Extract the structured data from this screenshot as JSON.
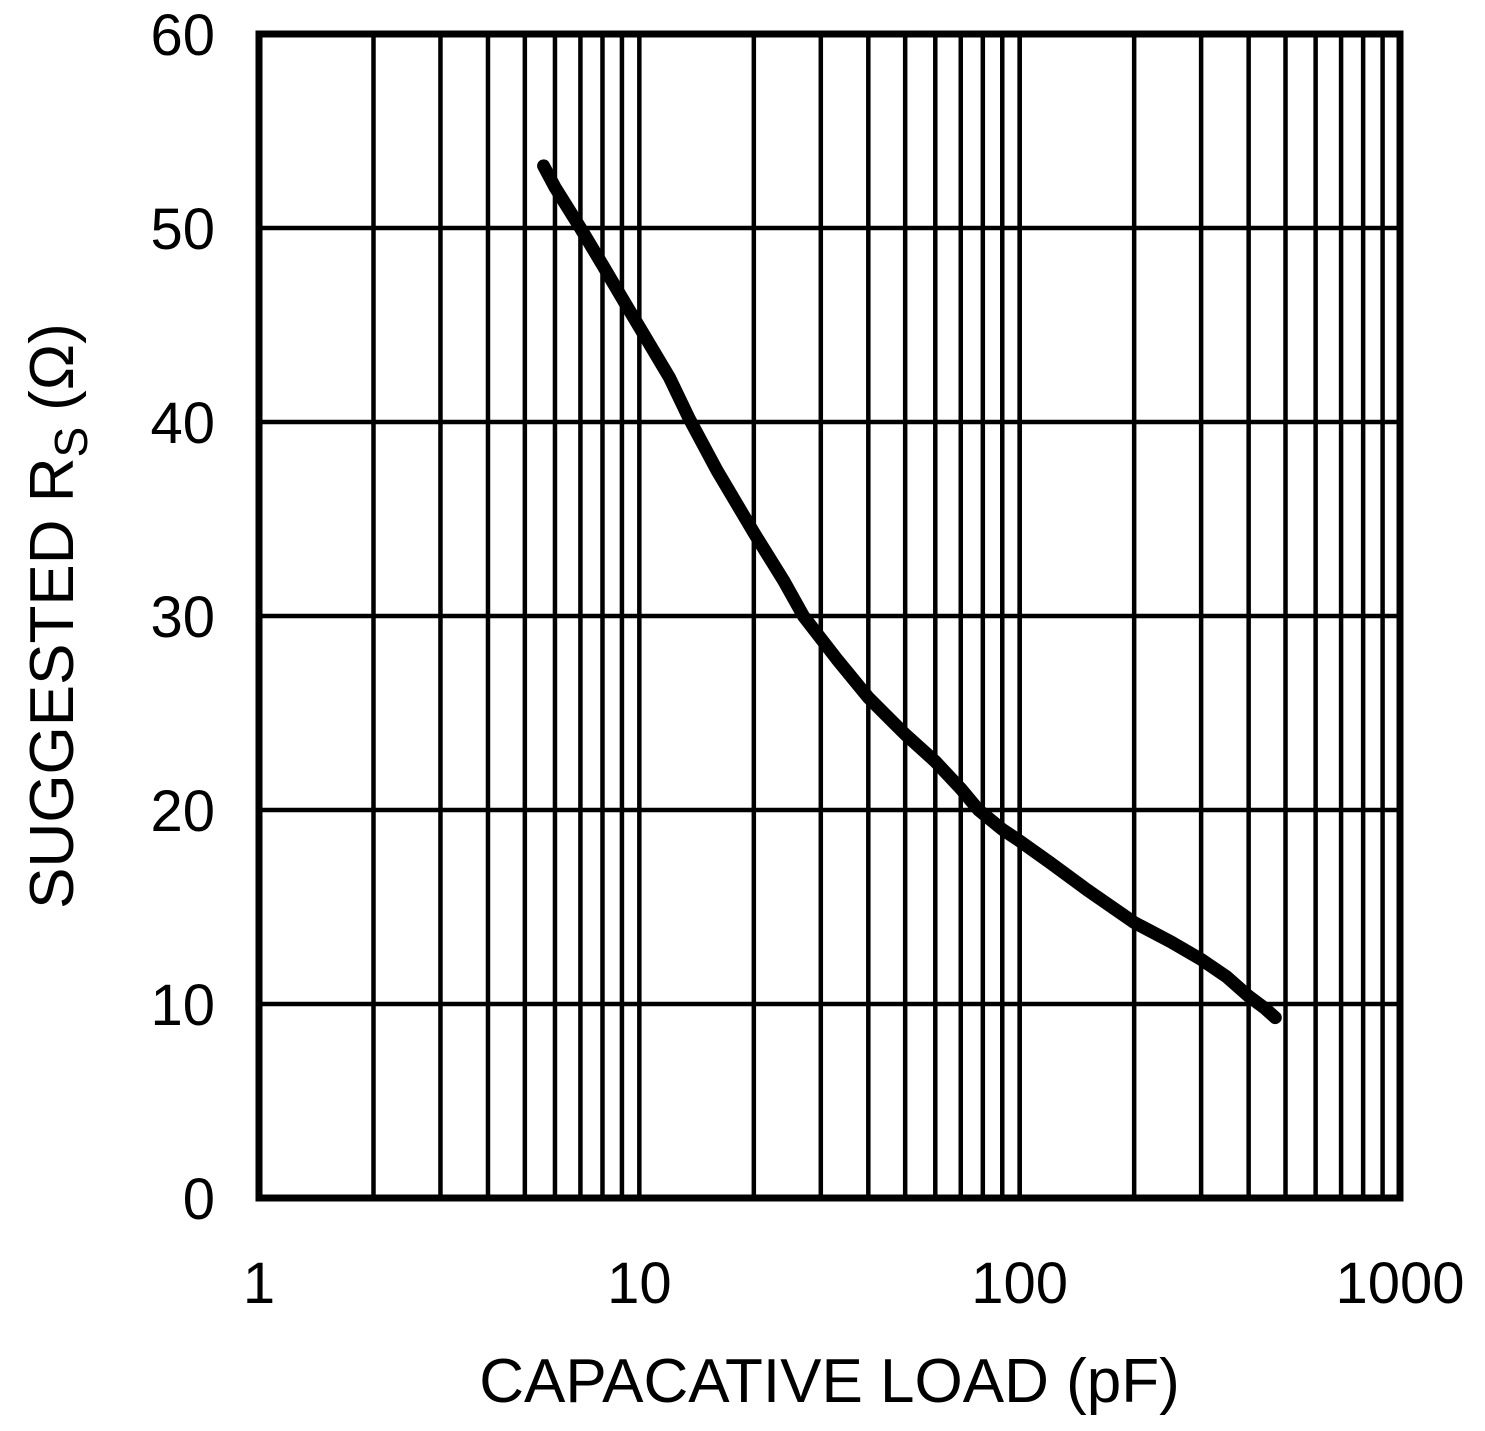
{
  "page": {
    "background": "#ffffff",
    "foreground": "#000000"
  },
  "chart_data": {
    "type": "line",
    "title": "",
    "xlabel": "CAPACATIVE LOAD (pF)",
    "ylabel": "SUGGESTED RS (Ω)",
    "ylabel_parts": {
      "pre": "SUGGESTED R",
      "sub": "S",
      "post": "(Ω)"
    },
    "x_scale": "log",
    "y_scale": "linear",
    "xlim": [
      1,
      1000
    ],
    "ylim": [
      0,
      60
    ],
    "x_ticks": [
      1,
      10,
      100,
      1000
    ],
    "y_ticks": [
      0,
      10,
      20,
      30,
      40,
      50,
      60
    ],
    "grid": {
      "vertical": "log-minor-and-major",
      "horizontal": "major",
      "frame": true
    },
    "legend": "none",
    "line_color": "#000000",
    "line_width": 13,
    "grid_line_width": 4.5,
    "frame_line_width": 7,
    "series": [
      {
        "name": "suggested_rs_vs_capacitive_load",
        "points": [
          [
            5.6,
            53.2
          ],
          [
            6,
            52.1
          ],
          [
            7,
            50.0
          ],
          [
            8,
            48.1
          ],
          [
            9,
            46.4
          ],
          [
            10,
            44.9
          ],
          [
            12,
            42.3
          ],
          [
            13.5,
            40.2
          ],
          [
            16,
            37.5
          ],
          [
            20,
            34.3
          ],
          [
            24,
            31.8
          ],
          [
            27,
            30.0
          ],
          [
            33,
            27.8
          ],
          [
            40,
            25.8
          ],
          [
            50,
            23.9
          ],
          [
            60,
            22.5
          ],
          [
            70,
            21.1
          ],
          [
            78,
            20.0
          ],
          [
            90,
            19.0
          ],
          [
            100,
            18.4
          ],
          [
            120,
            17.3
          ],
          [
            150,
            15.9
          ],
          [
            200,
            14.2
          ],
          [
            250,
            13.2
          ],
          [
            300,
            12.3
          ],
          [
            350,
            11.4
          ],
          [
            400,
            10.4
          ],
          [
            440,
            9.8
          ],
          [
            470,
            9.3
          ]
        ]
      }
    ]
  }
}
